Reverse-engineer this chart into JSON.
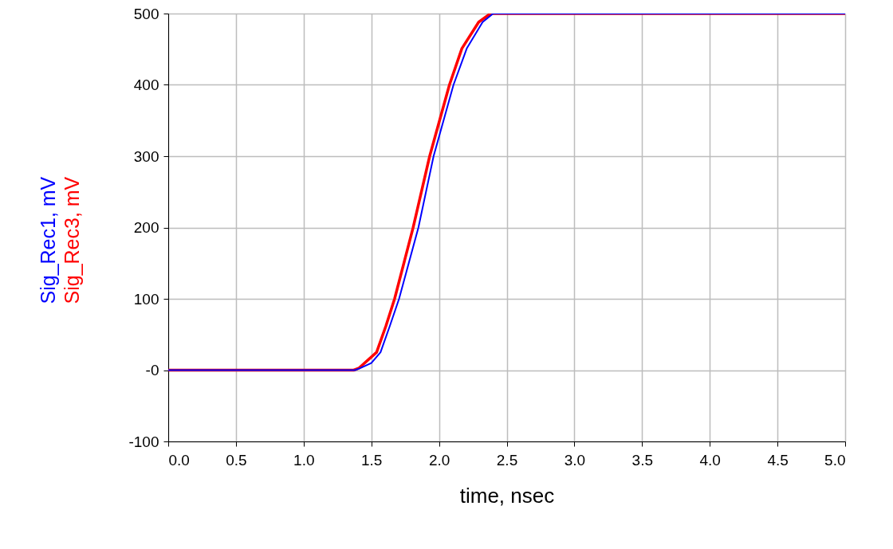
{
  "chart_data": {
    "type": "line",
    "xlabel": "time, nsec",
    "grid": true,
    "xlim": [
      0,
      5
    ],
    "xticks": [
      {
        "value": 0,
        "label": "0.0"
      },
      {
        "value": 0.5,
        "label": "0.5"
      },
      {
        "value": 1,
        "label": "1.0"
      },
      {
        "value": 1.5,
        "label": "1.5"
      },
      {
        "value": 2,
        "label": "2.0"
      },
      {
        "value": 2.5,
        "label": "2.5"
      },
      {
        "value": 3,
        "label": "3.0"
      },
      {
        "value": 3.5,
        "label": "3.5"
      },
      {
        "value": 4,
        "label": "4.0"
      },
      {
        "value": 4.5,
        "label": "4.5"
      },
      {
        "value": 5,
        "label": "5.0"
      }
    ],
    "ylim": [
      -100,
      500
    ],
    "yticks": [
      -100,
      {
        "value": 0,
        "label": "-0"
      },
      100,
      200,
      300,
      400,
      500
    ],
    "series": [
      {
        "name": "Sig_Rec1, mV",
        "color": "#0000ff",
        "x": [
          0,
          1.38,
          1.42,
          1.5,
          1.568,
          1.637,
          1.705,
          1.848,
          1.96,
          2.107,
          2.205,
          2.322,
          2.4,
          5
        ],
        "values": [
          0,
          0,
          3,
          10,
          25,
          62,
          100,
          200,
          300,
          400,
          451,
          488,
          500,
          500
        ]
      },
      {
        "name": "Sig_Rec3, mV",
        "color": "#ff0000",
        "x": [
          0,
          1.37,
          1.41,
          1.539,
          1.608,
          1.672,
          1.809,
          1.931,
          2.077,
          2.169,
          2.293,
          2.38,
          5
        ],
        "values": [
          0,
          0,
          3,
          25,
          62,
          100,
          200,
          300,
          400,
          451,
          488,
          500,
          500
        ]
      }
    ]
  }
}
